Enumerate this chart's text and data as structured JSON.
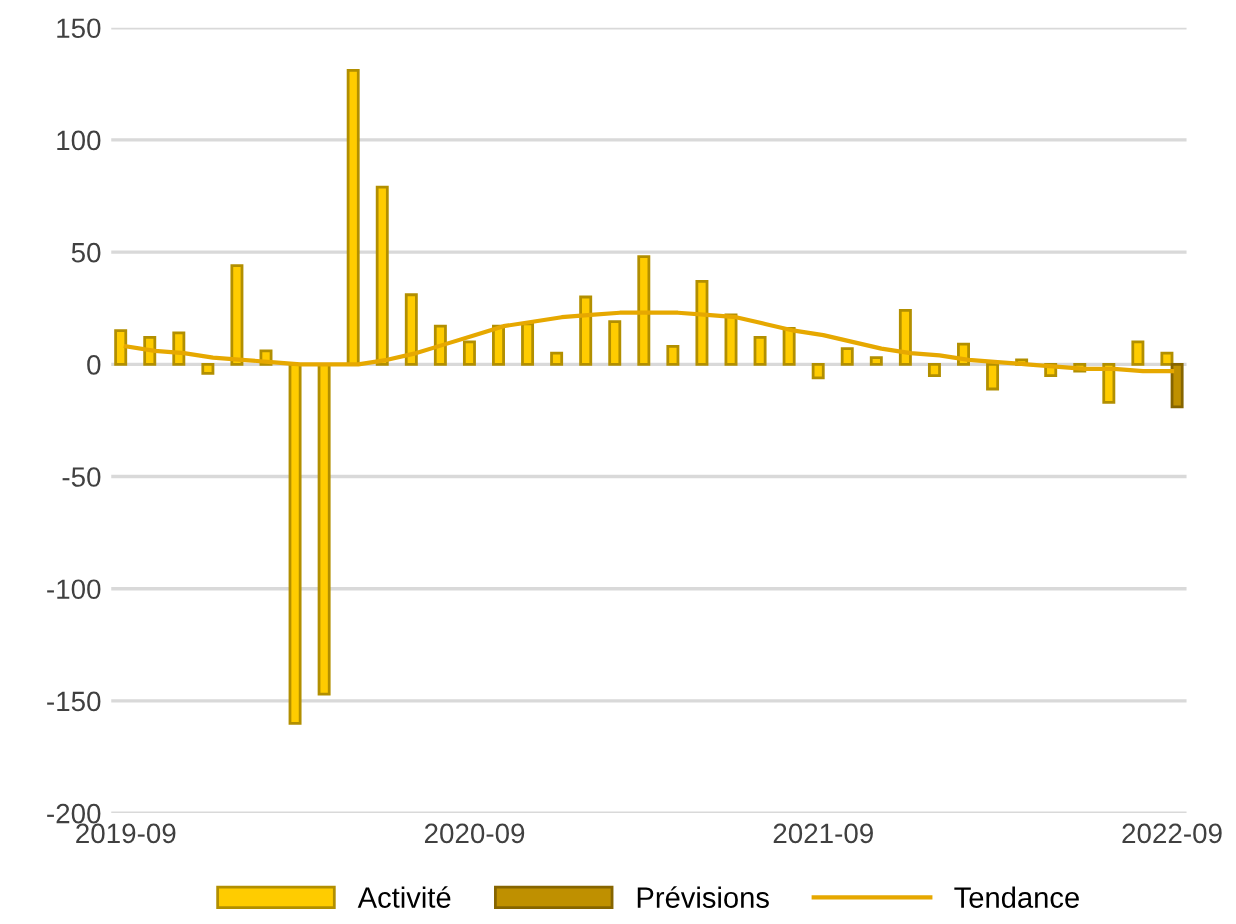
{
  "chart_data": {
    "type": "bar",
    "categories": [
      "2019-09",
      null,
      null,
      null,
      null,
      null,
      null,
      null,
      null,
      null,
      null,
      null,
      "2020-09",
      null,
      null,
      null,
      null,
      null,
      null,
      null,
      null,
      null,
      null,
      null,
      "2021-09",
      null,
      null,
      null,
      null,
      null,
      null,
      null,
      null,
      null,
      null,
      null,
      "2022-09"
    ],
    "series": [
      {
        "name": "Activité",
        "color": "#ffcc00",
        "values": [
          15,
          12,
          14,
          -4,
          44,
          6,
          -160,
          -147,
          131,
          79,
          31,
          17,
          10,
          17,
          18,
          5,
          30,
          19,
          48,
          8,
          37,
          22,
          12,
          16,
          -6,
          7,
          3,
          24,
          -5,
          9,
          -11,
          2,
          -5,
          -3,
          -17,
          10,
          5
        ]
      },
      {
        "name": "Prévisions",
        "color": "#bf9000",
        "values": [
          null,
          null,
          null,
          null,
          null,
          null,
          null,
          null,
          null,
          null,
          null,
          null,
          null,
          null,
          null,
          null,
          null,
          null,
          null,
          null,
          null,
          null,
          null,
          null,
          null,
          null,
          null,
          null,
          null,
          null,
          null,
          null,
          null,
          null,
          null,
          null,
          -19
        ]
      },
      {
        "name": "Tendance",
        "type": "line",
        "color": "#e6a800",
        "values": [
          8,
          6,
          5,
          3,
          2,
          1,
          0,
          0,
          0,
          2,
          5,
          9,
          13,
          17,
          19,
          21,
          22,
          23,
          23,
          23,
          22,
          21,
          18,
          15,
          13,
          10,
          7,
          5,
          4,
          2,
          1,
          0,
          -1,
          -2,
          -2,
          -3,
          -3
        ]
      }
    ],
    "ylim": [
      -200,
      150
    ],
    "yticks": [
      -200,
      -150,
      -100,
      -50,
      0,
      50,
      100,
      150
    ],
    "grid": "y",
    "legend": "bottom"
  }
}
